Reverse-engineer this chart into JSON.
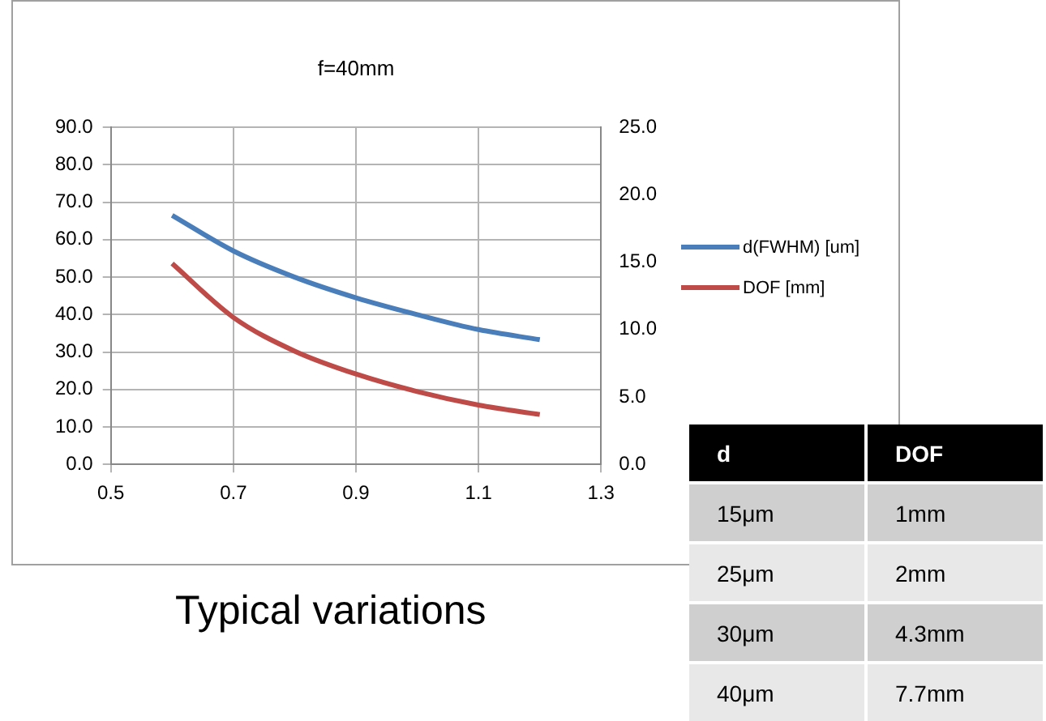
{
  "chart_data": [
    {
      "type": "line",
      "title": "f=40mm",
      "x": [
        0.6,
        0.7,
        0.8,
        0.9,
        1.0,
        1.1,
        1.2
      ],
      "series": [
        {
          "name": "d(FWHM) [um]",
          "color": "#4a7ebb",
          "values": [
            66.5,
            57,
            50,
            44.5,
            40,
            36,
            33.3
          ]
        },
        {
          "name": "DOF [mm]",
          "color": "#be4b48",
          "axis": "y2",
          "values": [
            14.9,
            10.9,
            8.4,
            6.7,
            5.4,
            4.4,
            3.7
          ]
        }
      ],
      "xlim": [
        0.5,
        1.3
      ],
      "xticks": [
        0.5,
        0.7,
        0.9,
        1.1,
        1.3
      ],
      "ylim": [
        0,
        90
      ],
      "yticks": [
        {
          "value": 0,
          "label": "0.0"
        },
        {
          "value": 10,
          "label": "10.0"
        },
        {
          "value": 20,
          "label": "20.0"
        },
        {
          "value": 30,
          "label": "30.0"
        },
        {
          "value": 40,
          "label": "40.0"
        },
        {
          "value": 50,
          "label": "50.0"
        },
        {
          "value": 60,
          "label": "60.0"
        },
        {
          "value": 70,
          "label": "70.0"
        },
        {
          "value": 80,
          "label": "80.0"
        },
        {
          "value": 90,
          "label": "90.0"
        }
      ],
      "y2lim": [
        0,
        25
      ],
      "y2ticks": [
        {
          "value": 0,
          "label": "0.0"
        },
        {
          "value": 5,
          "label": "5.0"
        },
        {
          "value": 10,
          "label": "10.0"
        },
        {
          "value": 15,
          "label": "15.0"
        },
        {
          "value": 20,
          "label": "20.0"
        },
        {
          "value": 25,
          "label": "25.0"
        }
      ],
      "grid": true,
      "legend": "right",
      "marker": "none",
      "line_style": "solid",
      "annotations": [
        "Typical variations"
      ]
    },
    {
      "type": "other",
      "annotations": [
        "d",
        "DOF",
        "15μm",
        "1mm",
        "25μm",
        "2mm",
        "30μm",
        "4.3mm",
        "40μm",
        "7.7mm"
      ]
    }
  ]
}
